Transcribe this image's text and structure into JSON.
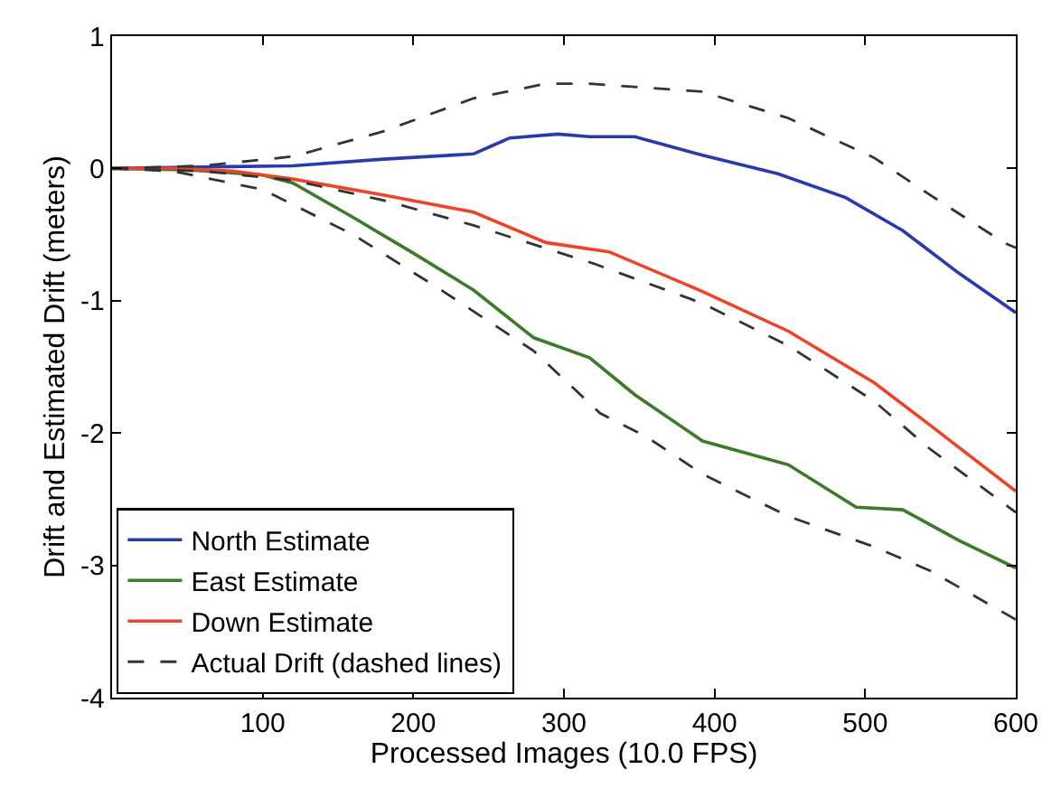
{
  "chart_data": {
    "type": "line",
    "xlabel": "Processed Images (10.0 FPS)",
    "ylabel": "Drift and Estimated Drift (meters)",
    "xlim": [
      0,
      600
    ],
    "xticks": [
      100,
      200,
      300,
      400,
      500,
      600
    ],
    "ylim": [
      -4,
      1
    ],
    "yticks": [
      -4,
      -3,
      -2,
      -1,
      0,
      1
    ],
    "legend": "bottom left",
    "marker": "none",
    "series": [
      {
        "name": "North Estimate",
        "color": "#2b3aa8",
        "line_style": "solid",
        "x": [
          0,
          50,
          120,
          180,
          240,
          252,
          264,
          296,
          317,
          347,
          392,
          442,
          487,
          525,
          562,
          600
        ],
        "values": [
          0,
          0.01,
          0.02,
          0.07,
          0.11,
          0.17,
          0.23,
          0.26,
          0.24,
          0.24,
          0.1,
          -0.04,
          -0.22,
          -0.47,
          -0.79,
          -1.09
        ]
      },
      {
        "name": "East Estimate",
        "color": "#3d7a2a",
        "line_style": "solid",
        "x": [
          0,
          50,
          100,
          120,
          160,
          200,
          240,
          280,
          317,
          347,
          392,
          449,
          494,
          525,
          562,
          600
        ],
        "values": [
          0,
          -0.01,
          -0.05,
          -0.11,
          -0.37,
          -0.64,
          -0.92,
          -1.28,
          -1.43,
          -1.71,
          -2.06,
          -2.24,
          -2.56,
          -2.58,
          -2.81,
          -3.02
        ]
      },
      {
        "name": "Down Estimate",
        "color": "#e8452a",
        "line_style": "solid",
        "x": [
          0,
          40,
          80,
          120,
          180,
          240,
          288,
          330,
          392,
          449,
          506,
          543,
          600
        ],
        "values": [
          0,
          0,
          -0.02,
          -0.08,
          -0.2,
          -0.33,
          -0.56,
          -0.63,
          -0.93,
          -1.23,
          -1.62,
          -1.94,
          -2.44
        ]
      },
      {
        "name": "Actual Drift (dashed lines)",
        "color": "#333333",
        "line_style": "dashed",
        "x": [
          0,
          40,
          100,
          160,
          220,
          280,
          324,
          355,
          392,
          449,
          506,
          543,
          600
        ],
        "values": [
          0,
          -0.02,
          -0.16,
          -0.5,
          -0.93,
          -1.38,
          -1.85,
          -2.03,
          -2.31,
          -2.63,
          -2.86,
          -3.04,
          -3.41
        ]
      },
      {
        "color": "#333333",
        "line_style": "dashed",
        "x": [
          0,
          60,
          120,
          180,
          240,
          288,
          317,
          392,
          449,
          506,
          543,
          592,
          600
        ],
        "values": [
          0,
          0.02,
          0.09,
          0.28,
          0.53,
          0.64,
          0.64,
          0.58,
          0.38,
          0.08,
          -0.2,
          -0.56,
          -0.6
        ]
      },
      {
        "color": "#333333",
        "line_style": "dashed",
        "x": [
          0,
          60,
          120,
          180,
          240,
          320,
          392,
          449,
          506,
          543,
          600
        ],
        "values": [
          0,
          -0.02,
          -0.09,
          -0.24,
          -0.43,
          -0.72,
          -1.02,
          -1.34,
          -1.76,
          -2.12,
          -2.6
        ]
      }
    ]
  }
}
